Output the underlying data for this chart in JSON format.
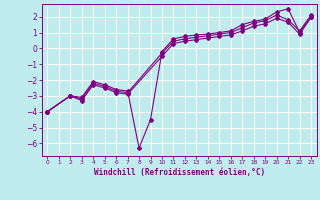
{
  "xlabel": "Windchill (Refroidissement éolien,°C)",
  "xlim": [
    -0.5,
    23.5
  ],
  "ylim": [
    -6.8,
    2.8
  ],
  "xticks": [
    0,
    1,
    2,
    3,
    4,
    5,
    6,
    7,
    8,
    9,
    10,
    11,
    12,
    13,
    14,
    15,
    16,
    17,
    18,
    19,
    20,
    21,
    22,
    23
  ],
  "yticks": [
    -6,
    -5,
    -4,
    -3,
    -2,
    -1,
    0,
    1,
    2
  ],
  "background_color": "#c0ecee",
  "grid_color": "#ffffff",
  "line_color": "#800080",
  "series1": [
    [
      0,
      -4.0
    ],
    [
      2,
      -3.0
    ],
    [
      3,
      -3.1
    ],
    [
      4,
      -2.1
    ],
    [
      5,
      -2.3
    ],
    [
      6,
      -2.6
    ],
    [
      7,
      -2.7
    ],
    [
      8,
      -6.3
    ],
    [
      9,
      -4.5
    ],
    [
      10,
      -0.2
    ],
    [
      11,
      0.6
    ],
    [
      12,
      0.75
    ],
    [
      13,
      0.85
    ],
    [
      14,
      0.9
    ],
    [
      15,
      1.0
    ],
    [
      16,
      1.1
    ],
    [
      17,
      1.5
    ],
    [
      18,
      1.7
    ],
    [
      19,
      1.85
    ],
    [
      20,
      2.3
    ],
    [
      21,
      2.5
    ],
    [
      22,
      1.0
    ],
    [
      23,
      2.0
    ]
  ],
  "series2": [
    [
      0,
      -4.0
    ],
    [
      2,
      -3.0
    ],
    [
      3,
      -3.2
    ],
    [
      4,
      -2.2
    ],
    [
      5,
      -2.4
    ],
    [
      6,
      -2.7
    ],
    [
      7,
      -2.8
    ],
    [
      10,
      -0.3
    ],
    [
      11,
      0.45
    ],
    [
      12,
      0.6
    ],
    [
      13,
      0.7
    ],
    [
      14,
      0.8
    ],
    [
      15,
      0.9
    ],
    [
      16,
      1.0
    ],
    [
      17,
      1.3
    ],
    [
      18,
      1.6
    ],
    [
      19,
      1.75
    ],
    [
      20,
      2.1
    ],
    [
      21,
      1.8
    ],
    [
      22,
      1.1
    ],
    [
      23,
      2.1
    ]
  ],
  "series3": [
    [
      0,
      -4.0
    ],
    [
      2,
      -3.0
    ],
    [
      3,
      -3.3
    ],
    [
      4,
      -2.3
    ],
    [
      5,
      -2.5
    ],
    [
      6,
      -2.8
    ],
    [
      7,
      -2.9
    ],
    [
      10,
      -0.5
    ],
    [
      11,
      0.3
    ],
    [
      12,
      0.45
    ],
    [
      13,
      0.55
    ],
    [
      14,
      0.65
    ],
    [
      15,
      0.75
    ],
    [
      16,
      0.85
    ],
    [
      17,
      1.1
    ],
    [
      18,
      1.4
    ],
    [
      19,
      1.55
    ],
    [
      20,
      1.9
    ],
    [
      21,
      1.65
    ],
    [
      22,
      0.9
    ],
    [
      23,
      1.95
    ]
  ]
}
